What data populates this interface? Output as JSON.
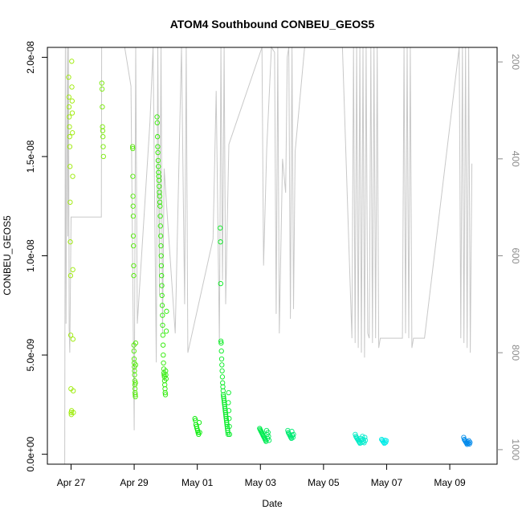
{
  "chart_data": {
    "type": "scatter",
    "title": "ATOM4 Southbound CONBEU_GEOS5",
    "xlabel": "Date",
    "ylabel": "CONBEU_GEOS5",
    "x_unit": "days",
    "xlim": [
      "2016-04-26T06:00",
      "2016-05-10T12:00"
    ],
    "ylim": [
      -5e-10,
      2.05e-08
    ],
    "x_ticks": [
      {
        "date": "2016-04-27",
        "label": "Apr 27"
      },
      {
        "date": "2016-04-29",
        "label": "Apr 29"
      },
      {
        "date": "2016-05-01",
        "label": "May 01"
      },
      {
        "date": "2016-05-03",
        "label": "May 03"
      },
      {
        "date": "2016-05-05",
        "label": "May 05"
      },
      {
        "date": "2016-05-07",
        "label": "May 07"
      },
      {
        "date": "2016-05-09",
        "label": "May 09"
      }
    ],
    "y_ticks": [
      {
        "value": 0,
        "label": "0.0e+00"
      },
      {
        "value": 5e-09,
        "label": "5.0e-09"
      },
      {
        "value": 1e-08,
        "label": "1.0e-08"
      },
      {
        "value": 1.5e-08,
        "label": "1.5e-08"
      },
      {
        "value": 2e-08,
        "label": "2.0e-08"
      }
    ],
    "y2_ticks": [
      {
        "value": 200,
        "label": "200"
      },
      {
        "value": 400,
        "label": "400"
      },
      {
        "value": 600,
        "label": "600"
      },
      {
        "value": 800,
        "label": "800"
      },
      {
        "value": 1000,
        "label": "1000"
      }
    ],
    "y2lim": [
      1030,
      170
    ],
    "grid": false,
    "legend": "none",
    "point_colors": "rainbow gradient by date (yellow-green to blue)",
    "line_color": "#c8c8c8",
    "clusters": [
      {
        "date": "2016-04-27T00:00",
        "spread": 0.15,
        "values": [
          1.9e-08,
          1.8e-08,
          1.75e-08,
          1.7e-08,
          1.65e-08,
          1.6e-08,
          1.55e-08,
          1.45e-08,
          1.27e-08,
          1.07e-08,
          9e-09,
          6e-09,
          3.3e-09,
          2.1e-09,
          2e-09,
          2.2e-09,
          1.98e-08,
          1.85e-08,
          1.78e-08,
          1.72e-08,
          1.62e-08,
          1.4e-08,
          9.3e-09,
          5.8e-09,
          3.2e-09,
          2.1e-09
        ]
      },
      {
        "date": "2016-04-28T00:00",
        "spread": 0.05,
        "values": [
          1.87e-08,
          1.84e-08,
          1.75e-08,
          1.65e-08,
          1.63e-08,
          1.6e-08,
          1.55e-08,
          1.5e-08
        ]
      },
      {
        "date": "2016-04-29T00:00",
        "spread": 0.1,
        "values": [
          1.55e-08,
          1.54e-08,
          1.4e-08,
          1.3e-08,
          1.25e-08,
          1.2e-08,
          1.1e-08,
          1.05e-08,
          9.5e-09,
          9e-09,
          5.5e-09,
          5.2e-09,
          4.8e-09,
          4.6e-09,
          4.4e-09,
          4.2e-09,
          4e-09,
          3.7e-09,
          3.5e-09,
          3.3e-09,
          3.1e-09,
          3e-09,
          2.9e-09,
          3.6e-09,
          4.5e-09,
          5.6e-09
        ]
      },
      {
        "date": "2016-04-29T21:00",
        "spread": 0.3,
        "values": [
          1.7e-08,
          1.67e-08,
          1.6e-08,
          1.55e-08,
          1.52e-08,
          1.48e-08,
          1.45e-08,
          1.42e-08,
          1.4e-08,
          1.38e-08,
          1.35e-08,
          1.32e-08,
          1.3e-08,
          1.27e-08,
          1.25e-08,
          1.2e-08,
          1.15e-08,
          1.1e-08,
          1.05e-08,
          1e-08,
          9.5e-09,
          9e-09,
          8.5e-09,
          8e-09,
          7.5e-09,
          7e-09,
          6.5e-09,
          6e-09,
          5.5e-09,
          5e-09,
          4.6e-09,
          4.3e-09,
          4.1e-09,
          4e-09,
          3.9e-09,
          3.7e-09,
          3.5e-09,
          3.3e-09,
          3.1e-09,
          3e-09,
          4.2e-09,
          4e-09,
          3.8e-09,
          6.2e-09,
          7.2e-09
        ]
      },
      {
        "date": "2016-05-01T00:00",
        "spread": 0.15,
        "values": [
          1.8e-09,
          1.7e-09,
          1.5e-09,
          1.4e-09,
          1.3e-09,
          1.2e-09,
          1.1e-09,
          1e-09,
          1.6e-09,
          1.1e-09
        ]
      },
      {
        "date": "2016-05-01T21:00",
        "spread": 0.3,
        "values": [
          1.14e-08,
          1.07e-08,
          8.6e-09,
          5.7e-09,
          5.6e-09,
          5.2e-09,
          4.8e-09,
          4.5e-09,
          4.2e-09,
          3.9e-09,
          3.6e-09,
          3.4e-09,
          3.2e-09,
          3e-09,
          2.9e-09,
          2.8e-09,
          2.7e-09,
          2.6e-09,
          2.5e-09,
          2.4e-09,
          2.3e-09,
          2.2e-09,
          2.1e-09,
          2e-09,
          1.9e-09,
          1.8e-09,
          1.7e-09,
          1.6e-09,
          1.5e-09,
          1.4e-09,
          1.3e-09,
          1.2e-09,
          1.1e-09,
          1e-09,
          2.6e-09,
          3.1e-09,
          2.2e-09,
          1.8e-09,
          1.4e-09,
          1e-09
        ]
      },
      {
        "date": "2016-05-03T03:00",
        "spread": 0.3,
        "values": [
          1.3e-09,
          1.25e-09,
          1.2e-09,
          1.15e-09,
          1.1e-09,
          1.05e-09,
          1e-09,
          9.5e-10,
          9e-10,
          8.5e-10,
          8e-10,
          7.5e-10,
          7e-10,
          6.5e-10,
          1.2e-09,
          1e-09,
          8e-10,
          1.1e-09,
          9e-10,
          7e-10
        ]
      },
      {
        "date": "2016-05-03T23:00",
        "spread": 0.18,
        "values": [
          1.2e-09,
          1.1e-09,
          1.05e-09,
          1e-09,
          9.5e-10,
          9e-10,
          8.5e-10,
          8e-10,
          1.15e-09,
          9.5e-10,
          8.5e-10,
          1e-09
        ]
      },
      {
        "date": "2016-05-06T04:00",
        "spread": 0.32,
        "values": [
          1e-09,
          9e-10,
          8.5e-10,
          8e-10,
          7.5e-10,
          7e-10,
          6.5e-10,
          6e-10,
          5.5e-10,
          8e-10,
          7e-10,
          6e-10,
          9e-10,
          7.5e-10,
          6.5e-10,
          5.8e-10,
          8.5e-10,
          7e-10
        ]
      },
      {
        "date": "2016-05-06T22:00",
        "spread": 0.15,
        "values": [
          7.5e-10,
          7e-10,
          6.5e-10,
          6e-10,
          5.5e-10,
          7e-10,
          6e-10,
          6.8e-10
        ]
      },
      {
        "date": "2016-05-09T13:00",
        "spread": 0.2,
        "values": [
          8.5e-10,
          7.5e-10,
          7e-10,
          6.5e-10,
          6e-10,
          5.5e-10,
          5e-10,
          6.2e-10,
          5.5e-10,
          6.8e-10,
          5.2e-10,
          6e-10
        ]
      }
    ],
    "altitude_profile_days_since_apr26": [
      0.8,
      1030,
      0.82,
      170,
      0.84,
      740,
      0.86,
      420,
      0.88,
      170,
      0.9,
      560,
      0.92,
      170,
      0.94,
      750,
      0.96,
      800,
      1.0,
      520,
      1.96,
      520,
      1.97,
      170,
      2.7,
      170,
      2.9,
      250,
      3.0,
      960,
      3.05,
      170,
      3.1,
      740,
      3.5,
      325,
      3.6,
      170,
      3.7,
      820,
      3.75,
      170,
      3.8,
      680,
      3.85,
      170,
      3.9,
      760,
      3.95,
      420,
      4.3,
      760,
      4.5,
      170,
      4.6,
      700,
      4.65,
      170,
      4.7,
      800,
      5.5,
      565,
      5.6,
      260,
      5.7,
      780,
      5.75,
      170,
      5.8,
      650,
      5.85,
      170,
      5.9,
      700,
      6.0,
      370,
      7.05,
      170,
      7.1,
      620,
      7.2,
      380,
      7.35,
      170,
      7.45,
      180,
      7.5,
      720,
      7.55,
      170,
      7.6,
      760,
      7.7,
      400,
      7.8,
      470,
      7.85,
      190,
      7.9,
      170,
      7.95,
      730,
      8.0,
      170,
      8.05,
      710,
      8.1,
      385,
      8.4,
      170,
      9.0,
      170,
      9.5,
      170,
      9.6,
      170,
      9.9,
      770,
      9.95,
      170,
      10.0,
      780,
      10.05,
      170,
      10.1,
      790,
      10.15,
      170,
      10.2,
      800,
      10.25,
      170,
      10.3,
      810,
      10.35,
      170,
      10.4,
      760,
      10.45,
      770,
      10.5,
      170,
      10.55,
      780,
      10.6,
      170,
      10.65,
      770,
      10.7,
      170,
      10.75,
      790,
      10.8,
      770,
      11.5,
      770,
      11.55,
      170,
      11.6,
      760,
      11.65,
      170,
      11.7,
      770,
      11.75,
      170,
      11.8,
      790,
      11.85,
      770,
      12.2,
      770,
      13.3,
      170,
      13.35,
      770,
      13.4,
      170,
      13.45,
      780,
      13.5,
      170,
      13.55,
      790,
      13.6,
      170,
      13.65,
      800,
      13.7,
      410
    ]
  }
}
